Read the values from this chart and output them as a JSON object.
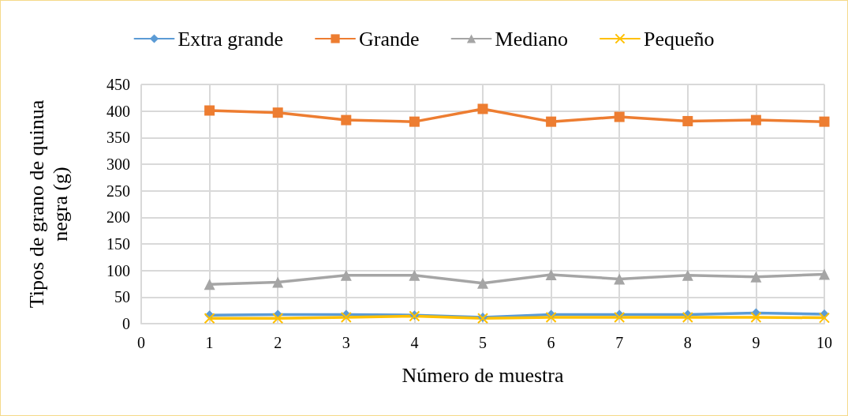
{
  "chart_data": {
    "type": "line",
    "xlabel": "Número de muestra",
    "ylabel": "Tipos de grano de quinua negra (g)",
    "x": [
      1,
      2,
      3,
      4,
      5,
      6,
      7,
      8,
      9,
      10
    ],
    "xlim": [
      0,
      10
    ],
    "xticks": [
      0,
      1,
      2,
      3,
      4,
      5,
      6,
      7,
      8,
      9,
      10
    ],
    "ylim": [
      0,
      450
    ],
    "yticks": [
      0,
      50,
      100,
      150,
      200,
      250,
      300,
      350,
      400,
      450
    ],
    "grid": true,
    "legend": "top",
    "line_style": "solid",
    "series": [
      {
        "name": "Extra grande",
        "color": "#5b9bd5",
        "marker": "diamond",
        "values": [
          16,
          17,
          17,
          16,
          12,
          17,
          17,
          17,
          20,
          18
        ]
      },
      {
        "name": "Grande",
        "color": "#ed7d31",
        "marker": "square",
        "values": [
          401,
          397,
          383,
          380,
          404,
          380,
          389,
          381,
          383,
          380
        ]
      },
      {
        "name": "Mediano",
        "color": "#a5a5a5",
        "marker": "triangle",
        "values": [
          74,
          78,
          91,
          91,
          76,
          92,
          84,
          91,
          88,
          93
        ]
      },
      {
        "name": "Pequeño",
        "color": "#ffc000",
        "marker": "cross",
        "values": [
          10,
          10,
          12,
          14,
          10,
          12,
          12,
          12,
          12,
          11
        ]
      }
    ]
  }
}
